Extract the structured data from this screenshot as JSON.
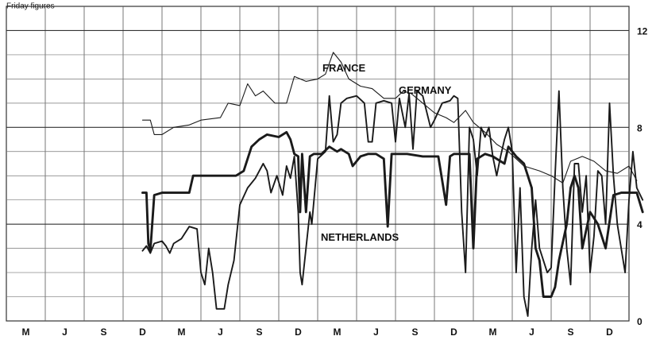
{
  "chart_data": {
    "type": "line",
    "ylabel": "Friday figures",
    "ylim": [
      0,
      13
    ],
    "yticks": [
      0,
      4,
      8,
      12
    ],
    "x_tick_labels": [
      "M",
      "J",
      "S",
      "D",
      "M",
      "J",
      "S",
      "D",
      "M",
      "J",
      "S",
      "D",
      "M",
      "J",
      "S",
      "D"
    ],
    "grid": true,
    "series": [
      {
        "name": "FRANCE",
        "style": "thin",
        "color": "#1a1a1a",
        "points": [
          [
            3.0,
            8.3
          ],
          [
            3.2,
            8.3
          ],
          [
            3.3,
            7.7
          ],
          [
            3.5,
            7.7
          ],
          [
            3.8,
            8.0
          ],
          [
            4.2,
            8.1
          ],
          [
            4.5,
            8.3
          ],
          [
            5.0,
            8.4
          ],
          [
            5.2,
            9.0
          ],
          [
            5.5,
            8.9
          ],
          [
            5.7,
            9.8
          ],
          [
            5.9,
            9.3
          ],
          [
            6.1,
            9.5
          ],
          [
            6.4,
            9.0
          ],
          [
            6.7,
            9.0
          ],
          [
            6.9,
            10.1
          ],
          [
            7.2,
            9.9
          ],
          [
            7.5,
            10.0
          ],
          [
            7.7,
            10.2
          ],
          [
            7.9,
            11.1
          ],
          [
            8.1,
            10.7
          ],
          [
            8.3,
            10.0
          ],
          [
            8.6,
            9.7
          ],
          [
            8.9,
            9.6
          ],
          [
            9.2,
            9.2
          ],
          [
            9.5,
            9.2
          ],
          [
            9.7,
            9.5
          ],
          [
            9.9,
            9.4
          ],
          [
            10.2,
            9.0
          ],
          [
            10.5,
            8.6
          ],
          [
            10.8,
            8.4
          ],
          [
            11.0,
            8.2
          ],
          [
            11.3,
            8.7
          ],
          [
            11.5,
            8.2
          ],
          [
            11.8,
            7.8
          ],
          [
            12.1,
            7.3
          ],
          [
            12.4,
            7.0
          ],
          [
            12.8,
            6.4
          ],
          [
            13.2,
            6.2
          ],
          [
            13.5,
            6.0
          ],
          [
            13.8,
            5.7
          ],
          [
            14.0,
            6.6
          ],
          [
            14.3,
            6.8
          ],
          [
            14.6,
            6.6
          ],
          [
            14.9,
            6.2
          ],
          [
            15.2,
            6.1
          ],
          [
            15.5,
            6.4
          ],
          [
            15.7,
            5.8
          ]
        ]
      },
      {
        "name": "GERMANY",
        "style": "medium",
        "color": "#1a1a1a",
        "points": [
          [
            3.0,
            2.9
          ],
          [
            3.1,
            3.1
          ],
          [
            3.2,
            2.8
          ],
          [
            3.3,
            3.2
          ],
          [
            3.5,
            3.3
          ],
          [
            3.6,
            3.1
          ],
          [
            3.7,
            2.8
          ],
          [
            3.8,
            3.2
          ],
          [
            4.0,
            3.4
          ],
          [
            4.2,
            3.9
          ],
          [
            4.4,
            3.8
          ],
          [
            4.5,
            2.0
          ],
          [
            4.6,
            1.5
          ],
          [
            4.7,
            3.0
          ],
          [
            4.8,
            2.0
          ],
          [
            4.9,
            0.5
          ],
          [
            5.1,
            0.5
          ],
          [
            5.2,
            1.5
          ],
          [
            5.35,
            2.5
          ],
          [
            5.5,
            4.8
          ],
          [
            5.7,
            5.5
          ],
          [
            5.9,
            5.9
          ],
          [
            6.1,
            6.5
          ],
          [
            6.2,
            6.2
          ],
          [
            6.3,
            5.3
          ],
          [
            6.45,
            6.0
          ],
          [
            6.6,
            5.2
          ],
          [
            6.7,
            6.4
          ],
          [
            6.8,
            5.9
          ],
          [
            6.9,
            6.8
          ],
          [
            7.0,
            4.5
          ],
          [
            7.05,
            2.0
          ],
          [
            7.1,
            1.5
          ],
          [
            7.2,
            3.0
          ],
          [
            7.3,
            4.5
          ],
          [
            7.35,
            4.0
          ],
          [
            7.5,
            6.7
          ],
          [
            7.7,
            7.0
          ],
          [
            7.8,
            9.3
          ],
          [
            7.9,
            7.4
          ],
          [
            8.0,
            7.7
          ],
          [
            8.1,
            9.0
          ],
          [
            8.25,
            9.2
          ],
          [
            8.5,
            9.3
          ],
          [
            8.7,
            9.0
          ],
          [
            8.8,
            7.4
          ],
          [
            8.9,
            7.4
          ],
          [
            9.0,
            9.0
          ],
          [
            9.2,
            9.1
          ],
          [
            9.4,
            9.0
          ],
          [
            9.5,
            7.4
          ],
          [
            9.6,
            9.2
          ],
          [
            9.75,
            8.0
          ],
          [
            9.85,
            9.4
          ],
          [
            9.95,
            7.1
          ],
          [
            10.05,
            9.5
          ],
          [
            10.2,
            9.3
          ],
          [
            10.4,
            8.0
          ],
          [
            10.5,
            8.3
          ],
          [
            10.7,
            9.0
          ],
          [
            10.9,
            9.1
          ],
          [
            11.0,
            9.3
          ],
          [
            11.1,
            9.2
          ],
          [
            11.2,
            4.5
          ],
          [
            11.3,
            2.0
          ],
          [
            11.4,
            8.0
          ],
          [
            11.5,
            7.5
          ],
          [
            11.6,
            6.0
          ],
          [
            11.7,
            8.0
          ],
          [
            11.8,
            7.6
          ],
          [
            11.9,
            8.0
          ],
          [
            12.0,
            6.8
          ],
          [
            12.1,
            6.0
          ],
          [
            12.2,
            6.8
          ],
          [
            12.3,
            7.5
          ],
          [
            12.4,
            8.0
          ],
          [
            12.5,
            7.0
          ],
          [
            12.6,
            2.0
          ],
          [
            12.7,
            5.5
          ],
          [
            12.8,
            1.0
          ],
          [
            12.9,
            0.2
          ],
          [
            13.0,
            3.0
          ],
          [
            13.1,
            5.0
          ],
          [
            13.2,
            3.0
          ],
          [
            13.4,
            2.0
          ],
          [
            13.5,
            2.2
          ],
          [
            13.6,
            6.0
          ],
          [
            13.7,
            9.5
          ],
          [
            13.8,
            5.5
          ],
          [
            13.9,
            3.0
          ],
          [
            14.0,
            1.5
          ],
          [
            14.1,
            6.5
          ],
          [
            14.2,
            6.5
          ],
          [
            14.3,
            4.5
          ],
          [
            14.4,
            6.0
          ],
          [
            14.5,
            2.0
          ],
          [
            14.6,
            3.5
          ],
          [
            14.7,
            6.2
          ],
          [
            14.8,
            6.0
          ],
          [
            14.9,
            4.0
          ],
          [
            15.0,
            9.0
          ],
          [
            15.1,
            6.0
          ],
          [
            15.2,
            4.0
          ],
          [
            15.4,
            2.0
          ],
          [
            15.5,
            5.0
          ],
          [
            15.6,
            7.0
          ],
          [
            15.7,
            5.5
          ],
          [
            15.85,
            5.0
          ]
        ]
      },
      {
        "name": "NETHERLANDS",
        "style": "thick",
        "color": "#1a1a1a",
        "points": [
          [
            3.0,
            5.3
          ],
          [
            3.1,
            5.3
          ],
          [
            3.15,
            3.2
          ],
          [
            3.2,
            2.9
          ],
          [
            3.3,
            5.2
          ],
          [
            3.5,
            5.3
          ],
          [
            4.0,
            5.3
          ],
          [
            4.2,
            5.3
          ],
          [
            4.3,
            6.0
          ],
          [
            4.6,
            6.0
          ],
          [
            5.0,
            6.0
          ],
          [
            5.4,
            6.0
          ],
          [
            5.6,
            6.2
          ],
          [
            5.8,
            7.2
          ],
          [
            6.0,
            7.5
          ],
          [
            6.2,
            7.7
          ],
          [
            6.5,
            7.6
          ],
          [
            6.7,
            7.8
          ],
          [
            6.8,
            7.5
          ],
          [
            6.9,
            6.9
          ],
          [
            7.0,
            6.8
          ],
          [
            7.05,
            4.5
          ],
          [
            7.1,
            6.9
          ],
          [
            7.2,
            4.5
          ],
          [
            7.3,
            6.8
          ],
          [
            7.4,
            6.9
          ],
          [
            7.6,
            6.9
          ],
          [
            7.8,
            7.2
          ],
          [
            8.0,
            7.0
          ],
          [
            8.1,
            7.1
          ],
          [
            8.2,
            7.0
          ],
          [
            8.3,
            6.9
          ],
          [
            8.4,
            6.4
          ],
          [
            8.6,
            6.8
          ],
          [
            8.8,
            6.9
          ],
          [
            9.0,
            6.9
          ],
          [
            9.2,
            6.7
          ],
          [
            9.3,
            3.9
          ],
          [
            9.4,
            6.9
          ],
          [
            9.6,
            6.9
          ],
          [
            9.8,
            6.9
          ],
          [
            10.2,
            6.8
          ],
          [
            10.6,
            6.8
          ],
          [
            10.8,
            4.8
          ],
          [
            10.9,
            6.8
          ],
          [
            11.0,
            6.9
          ],
          [
            11.2,
            6.9
          ],
          [
            11.4,
            6.9
          ],
          [
            11.5,
            3.0
          ],
          [
            11.6,
            6.7
          ],
          [
            11.8,
            6.9
          ],
          [
            12.0,
            6.8
          ],
          [
            12.2,
            6.6
          ],
          [
            12.3,
            6.5
          ],
          [
            12.4,
            7.2
          ],
          [
            12.6,
            6.8
          ],
          [
            12.8,
            6.5
          ],
          [
            12.9,
            6.0
          ],
          [
            13.0,
            5.5
          ],
          [
            13.1,
            3.0
          ],
          [
            13.2,
            2.5
          ],
          [
            13.3,
            1.0
          ],
          [
            13.5,
            1.0
          ],
          [
            13.6,
            1.4
          ],
          [
            13.7,
            2.5
          ],
          [
            13.9,
            4.0
          ],
          [
            14.0,
            5.5
          ],
          [
            14.1,
            6.0
          ],
          [
            14.2,
            5.5
          ],
          [
            14.3,
            3.0
          ],
          [
            14.5,
            4.5
          ],
          [
            14.7,
            4.0
          ],
          [
            14.9,
            3.0
          ],
          [
            15.1,
            5.2
          ],
          [
            15.3,
            5.3
          ],
          [
            15.5,
            5.3
          ],
          [
            15.7,
            5.3
          ],
          [
            15.85,
            4.5
          ]
        ]
      }
    ]
  }
}
